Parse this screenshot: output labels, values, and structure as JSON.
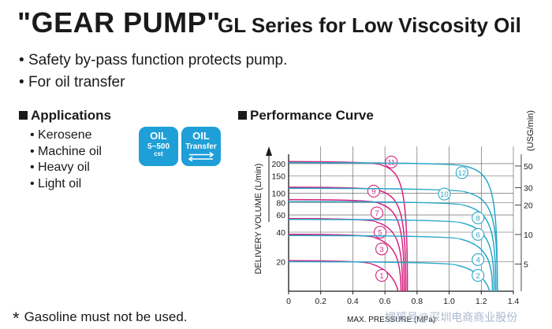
{
  "header": {
    "title_main": "\"GEAR PUMP\"",
    "title_sub": "GL Series for Low Viscosity Oil"
  },
  "features": [
    "Safety by-pass function protects pump.",
    "For oil transfer"
  ],
  "applications": {
    "heading": "Applications",
    "items": [
      "Kerosene",
      "Machine oil",
      "Heavy oil",
      "Light oil"
    ]
  },
  "badges": {
    "viscosity": {
      "line1": "OIL",
      "line2": "5~500",
      "line3": "cst"
    },
    "transfer": {
      "line1": "OIL",
      "line2": "Transfer"
    }
  },
  "note": {
    "symbol": "*",
    "text": "Gasoline must not be used."
  },
  "watermark": "搜狐号@深圳电商商业股份",
  "colors": {
    "magenta": "#d4237f",
    "cyan": "#2aa7c9",
    "badge": "#1e9fd8"
  },
  "chart_data": {
    "type": "line",
    "title": "Performance Curve",
    "xlabel": "MAX. PRESSURE (MPa)",
    "ylabel": "DELIVERY VOLUME (L/min)",
    "y2label": "(USG/min)",
    "y_scale": "log",
    "xlim": [
      0,
      1.4
    ],
    "ylim": [
      10,
      300
    ],
    "x_ticks": [
      "0",
      "0.2",
      "0.4",
      "0.6",
      "0.8",
      "1.0",
      "1.2",
      "1.4"
    ],
    "y_ticks": [
      {
        "label": "200",
        "value": 200
      },
      {
        "label": "150",
        "value": 150
      },
      {
        "label": "100",
        "value": 100
      },
      {
        "label": "80",
        "value": 80
      },
      {
        "label": "60",
        "value": 60
      },
      {
        "label": "40",
        "value": 40
      },
      {
        "label": "20",
        "value": 20
      }
    ],
    "y2_ticks": [
      {
        "label": "50",
        "value": 189.3
      },
      {
        "label": "30",
        "value": 113.6
      },
      {
        "label": "20",
        "value": 75.7
      },
      {
        "label": "10",
        "value": 37.9
      },
      {
        "label": "5",
        "value": 18.9
      }
    ],
    "grid": true,
    "series": [
      {
        "name": "1",
        "color": "magenta",
        "start": 20.5,
        "x_end": 0.68,
        "y_end_label": 13,
        "label_at": [
          0.58,
          14.5
        ]
      },
      {
        "name": "3",
        "color": "magenta",
        "start": 38,
        "x_end": 0.7,
        "label_at": [
          0.58,
          27
        ]
      },
      {
        "name": "5",
        "color": "magenta",
        "start": 55,
        "x_end": 0.71,
        "label_at": [
          0.57,
          40
        ]
      },
      {
        "name": "7",
        "color": "magenta",
        "start": 86,
        "x_end": 0.72,
        "label_at": [
          0.55,
          63
        ]
      },
      {
        "name": "9",
        "color": "magenta",
        "start": 115,
        "x_end": 0.73,
        "label_at": [
          0.53,
          105
        ]
      },
      {
        "name": "11",
        "color": "magenta",
        "start": 210,
        "x_end": 0.74,
        "label_at": [
          0.64,
          208
        ]
      },
      {
        "name": "2",
        "color": "cyan",
        "start": 20,
        "x_end": 1.25,
        "label_at": [
          1.18,
          14.5
        ]
      },
      {
        "name": "4",
        "color": "cyan",
        "start": 37,
        "x_end": 1.27,
        "label_at": [
          1.18,
          21
        ]
      },
      {
        "name": "6",
        "color": "cyan",
        "start": 54,
        "x_end": 1.28,
        "label_at": [
          1.18,
          38
        ]
      },
      {
        "name": "8",
        "color": "cyan",
        "start": 82,
        "x_end": 1.29,
        "label_at": [
          1.18,
          56
        ]
      },
      {
        "name": "10",
        "color": "cyan",
        "start": 112,
        "x_end": 1.3,
        "label_at": [
          0.97,
          98
        ]
      },
      {
        "name": "12",
        "color": "cyan",
        "start": 205,
        "x_end": 1.3,
        "label_at": [
          1.08,
          162
        ]
      }
    ]
  }
}
